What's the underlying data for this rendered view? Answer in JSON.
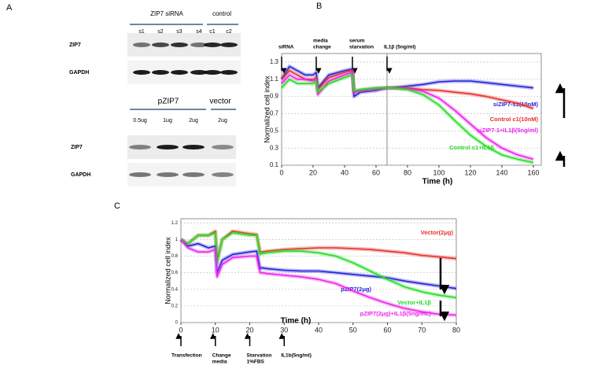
{
  "panel_labels": [
    "A",
    "B",
    "C"
  ],
  "blots": {
    "top": {
      "group_labels": [
        "ZIP7 siRNA",
        "control"
      ],
      "lanes": [
        "s1",
        "s2",
        "s3",
        "s4",
        "c1",
        "c2"
      ],
      "rows": [
        "ZIP7",
        "GAPDH"
      ]
    },
    "bottom": {
      "group_labels": [
        "pZIP7",
        "vector"
      ],
      "lanes": [
        "0.5ug",
        "1ug",
        "2ug",
        "2ug"
      ],
      "rows": [
        "ZIP7",
        "GAPDH"
      ]
    }
  },
  "chart_data": [
    {
      "type": "line",
      "x_label": "Time (h)",
      "y_label": "Normalized cell index",
      "xlim": [
        0,
        165
      ],
      "xticks": [
        0,
        20,
        40,
        60,
        80,
        100,
        120,
        140,
        160
      ],
      "ylim": [
        0.1,
        1.4
      ],
      "yticks": [
        0.1,
        0.3,
        0.5,
        0.7,
        0.9,
        1.1,
        1.3
      ],
      "grid": true,
      "events": [
        {
          "label": [
            "siRNA"
          ],
          "x": 0
        },
        {
          "label": [
            "media",
            "change"
          ],
          "x": 22
        },
        {
          "label": [
            "serum",
            "starvation"
          ],
          "x": 45
        },
        {
          "label": [
            "IL1β (5ng/ml)"
          ],
          "x": 67
        }
      ],
      "x": [
        0,
        5,
        10,
        15,
        20,
        22,
        23,
        30,
        40,
        45,
        46,
        50,
        60,
        67,
        70,
        80,
        90,
        100,
        110,
        120,
        130,
        140,
        150,
        160
      ],
      "series": [
        {
          "name": "siZIP7-s1(10nM)",
          "color": "#2222dd",
          "values": [
            1.1,
            1.25,
            1.2,
            1.15,
            1.15,
            1.18,
            1.0,
            1.15,
            1.2,
            1.22,
            0.9,
            0.95,
            0.97,
            1.0,
            1.0,
            1.02,
            1.04,
            1.07,
            1.08,
            1.08,
            1.06,
            1.04,
            1.02,
            1.0
          ]
        },
        {
          "name": "Control c1(10nM)",
          "color": "#e8302a",
          "values": [
            1.1,
            1.2,
            1.15,
            1.1,
            1.1,
            1.12,
            0.98,
            1.12,
            1.18,
            1.2,
            0.95,
            0.97,
            0.99,
            1.0,
            1.0,
            1.0,
            0.98,
            0.97,
            0.95,
            0.93,
            0.9,
            0.86,
            0.82,
            0.76
          ]
        },
        {
          "name": "siZIP7-1+IL1β(5ng/ml)",
          "color": "#ee22ee",
          "values": [
            1.05,
            1.15,
            1.1,
            1.1,
            1.08,
            1.1,
            0.92,
            1.08,
            1.15,
            1.18,
            0.95,
            0.97,
            0.99,
            1.0,
            1.0,
            0.99,
            0.96,
            0.88,
            0.74,
            0.58,
            0.42,
            0.3,
            0.22,
            0.17
          ]
        },
        {
          "name": "Control c1+IL1β",
          "color": "#22dd22",
          "values": [
            1.0,
            1.1,
            1.05,
            1.05,
            1.05,
            1.08,
            0.95,
            1.05,
            1.12,
            1.15,
            0.97,
            0.98,
            1.0,
            1.0,
            1.0,
            0.98,
            0.92,
            0.8,
            0.62,
            0.45,
            0.32,
            0.22,
            0.17,
            0.13
          ]
        }
      ]
    },
    {
      "type": "line",
      "x_label": "Time (h)",
      "y_label": "Normalized cell index",
      "xlim": [
        0,
        80
      ],
      "xticks": [
        0,
        10,
        20,
        30,
        40,
        50,
        60,
        70,
        80
      ],
      "ylim": [
        0,
        1.25
      ],
      "yticks": [
        0,
        0.2,
        0.4,
        0.6,
        0.8,
        1,
        1.2
      ],
      "grid": true,
      "events": [
        {
          "label": [
            "Transfection"
          ],
          "x": 0
        },
        {
          "label": [
            "Change",
            "media"
          ],
          "x": 10
        },
        {
          "label": [
            "Starvation",
            "1%FBS"
          ],
          "x": 20
        },
        {
          "label": [
            "IL1b(5ng/ml)"
          ],
          "x": 30
        }
      ],
      "x": [
        0,
        2,
        5,
        8,
        10,
        10.5,
        12,
        15,
        20,
        22,
        23,
        23.5,
        25,
        30,
        35,
        40,
        45,
        50,
        55,
        60,
        65,
        70,
        75,
        80
      ],
      "series": [
        {
          "name": "Vector(2μg)",
          "color": "#e8302a",
          "values": [
            1.0,
            0.95,
            1.05,
            1.05,
            1.1,
            0.75,
            1.0,
            1.1,
            1.07,
            1.06,
            0.85,
            0.85,
            0.86,
            0.88,
            0.89,
            0.9,
            0.9,
            0.89,
            0.88,
            0.86,
            0.84,
            0.81,
            0.79,
            0.77
          ]
        },
        {
          "name": "pZIP7(2μg)",
          "color": "#2222dd",
          "values": [
            1.0,
            0.92,
            0.95,
            0.9,
            0.92,
            0.6,
            0.75,
            0.82,
            0.85,
            0.86,
            0.65,
            0.66,
            0.65,
            0.63,
            0.62,
            0.62,
            0.6,
            0.58,
            0.56,
            0.54,
            0.5,
            0.47,
            0.44,
            0.41
          ]
        },
        {
          "name": "Vector+IL1β",
          "color": "#22dd22",
          "values": [
            1.0,
            0.95,
            1.05,
            1.05,
            1.08,
            0.72,
            1.0,
            1.08,
            1.05,
            1.05,
            0.82,
            0.83,
            0.84,
            0.86,
            0.86,
            0.84,
            0.8,
            0.72,
            0.62,
            0.52,
            0.43,
            0.37,
            0.33,
            0.3
          ]
        },
        {
          "name": "pZIP7(2μg)+IL1β(5ng/mL)",
          "color": "#ee22ee",
          "values": [
            1.0,
            0.9,
            0.85,
            0.85,
            0.88,
            0.55,
            0.7,
            0.78,
            0.8,
            0.8,
            0.6,
            0.6,
            0.59,
            0.57,
            0.55,
            0.52,
            0.47,
            0.38,
            0.3,
            0.23,
            0.17,
            0.13,
            0.1,
            0.09
          ]
        }
      ]
    }
  ]
}
